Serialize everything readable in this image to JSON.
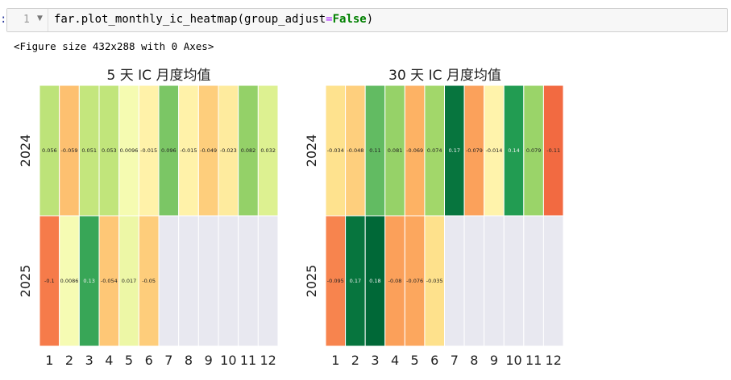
{
  "cell": {
    "prompt": ":",
    "line_number": "1",
    "code_prefix": "far.plot_monthly_ic_heatmap(group_adjust",
    "code_op": "=",
    "code_kw": "False",
    "code_suffix": ")"
  },
  "output": {
    "text": "<Figure size 432x288 with 0 Axes>"
  },
  "colors": {
    "empty_cell": "#e8e8f0",
    "cell_border": "#ffffff",
    "colormap": "RdYlGn"
  },
  "chart_data": [
    {
      "type": "heatmap",
      "title": "5 天 IC 月度均值",
      "rows": [
        "2024",
        "2025"
      ],
      "columns": [
        "1",
        "2",
        "3",
        "4",
        "5",
        "6",
        "7",
        "8",
        "9",
        "10",
        "11",
        "12"
      ],
      "values": [
        [
          "0.056",
          "-0.059",
          "0.051",
          "0.053",
          "0.0096",
          "-0.015",
          "0.096",
          "-0.015",
          "-0.049",
          "-0.023",
          "0.082",
          "0.032"
        ],
        [
          "-0.1",
          "0.0086",
          "0.13",
          "-0.054",
          "0.017",
          "-0.05",
          null,
          null,
          null,
          null,
          null,
          null
        ]
      ],
      "color_range": [
        -0.18,
        0.18
      ]
    },
    {
      "type": "heatmap",
      "title": "30 天 IC 月度均值",
      "rows": [
        "2024",
        "2025"
      ],
      "columns": [
        "1",
        "2",
        "3",
        "4",
        "5",
        "6",
        "7",
        "8",
        "9",
        "10",
        "11",
        "12"
      ],
      "values": [
        [
          "-0.034",
          "-0.048",
          "0.11",
          "0.081",
          "-0.069",
          "0.074",
          "0.17",
          "-0.079",
          "-0.014",
          "0.14",
          "0.079",
          "-0.11"
        ],
        [
          "-0.095",
          "0.17",
          "0.18",
          "-0.08",
          "-0.076",
          "-0.035",
          null,
          null,
          null,
          null,
          null,
          null
        ]
      ],
      "color_range": [
        -0.18,
        0.18
      ]
    }
  ]
}
